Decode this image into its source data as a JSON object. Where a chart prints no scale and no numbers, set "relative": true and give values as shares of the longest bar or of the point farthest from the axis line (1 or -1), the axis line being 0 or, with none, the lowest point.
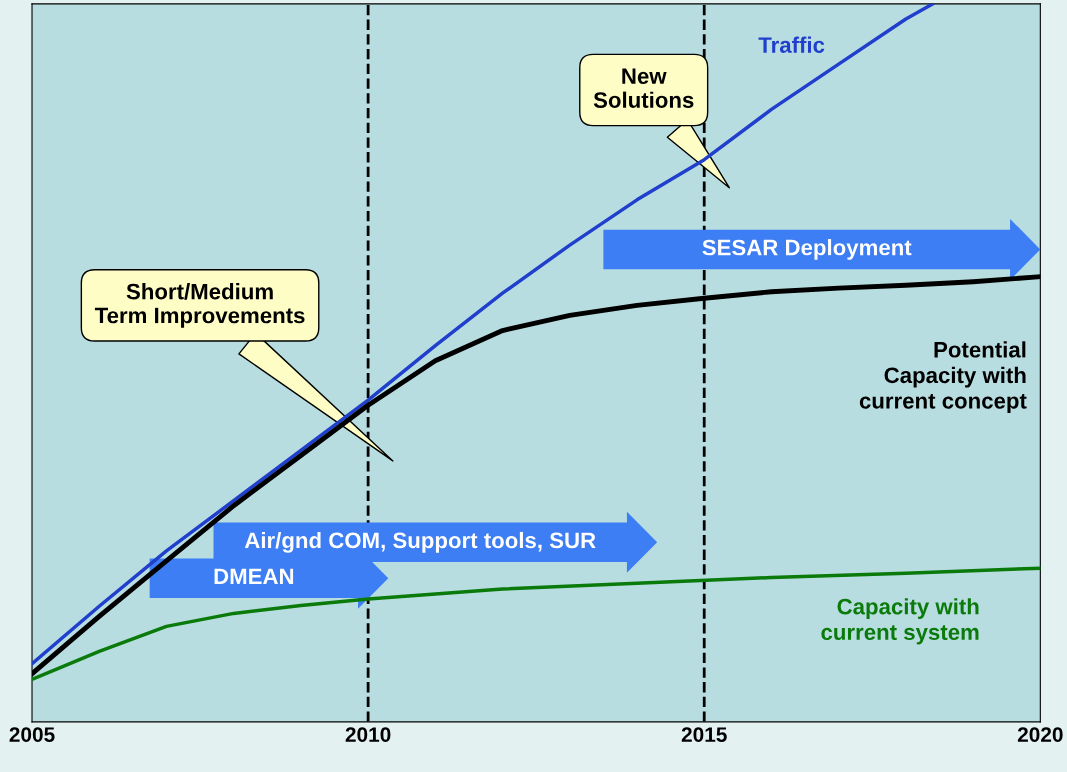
{
  "chart_data": {
    "type": "line",
    "relative": true,
    "x": [
      2005,
      2006,
      2007,
      2008,
      2009,
      2010,
      2011,
      2012,
      2013,
      2014,
      2015,
      2016,
      2017,
      2018,
      2019,
      2020
    ],
    "xlim": [
      2005,
      2020
    ],
    "xticks": [
      2005,
      2010,
      2015,
      2020
    ],
    "tick_labels": "x",
    "series": [
      {
        "name": "Traffic",
        "color": "#1f3fcc",
        "x": [
          2005,
          2006,
          2007,
          2008,
          2009,
          2010,
          2011,
          2012,
          2013,
          2014,
          2015,
          2016,
          2017,
          2018,
          2018.4
        ],
        "values": [
          0.081,
          0.161,
          0.238,
          0.308,
          0.378,
          0.448,
          0.524,
          0.597,
          0.664,
          0.727,
          0.783,
          0.853,
          0.916,
          0.979,
          1.0
        ]
      },
      {
        "name": "Potential\nCapacity with\ncurrent concept",
        "color": "#000000",
        "values": [
          0.067,
          0.147,
          0.224,
          0.301,
          0.371,
          0.441,
          0.503,
          0.545,
          0.566,
          0.58,
          0.59,
          0.599,
          0.604,
          0.608,
          0.613,
          0.62
        ]
      },
      {
        "name": "Capacity with\ncurrent system",
        "color": "#0a7a0a",
        "x": [
          2005,
          2006,
          2007,
          2008,
          2009,
          2010,
          2012,
          2014,
          2016,
          2018,
          2020
        ],
        "values": [
          0.059,
          0.098,
          0.133,
          0.151,
          0.162,
          0.171,
          0.185,
          0.193,
          0.201,
          0.207,
          0.214
        ]
      }
    ],
    "ref_lines": [
      {
        "axis": "x",
        "value": 2010,
        "color": "#000000",
        "line_style": "dashed"
      },
      {
        "axis": "x",
        "value": 2015,
        "color": "#000000",
        "line_style": "dashed"
      }
    ],
    "annotations": [
      "Short/Medium\nTerm Improvements",
      "New\nSolutions",
      "SESAR Deployment",
      "Air/gnd COM, Support tools, SUR",
      "DMEAN"
    ],
    "grid": false,
    "legend": false
  }
}
